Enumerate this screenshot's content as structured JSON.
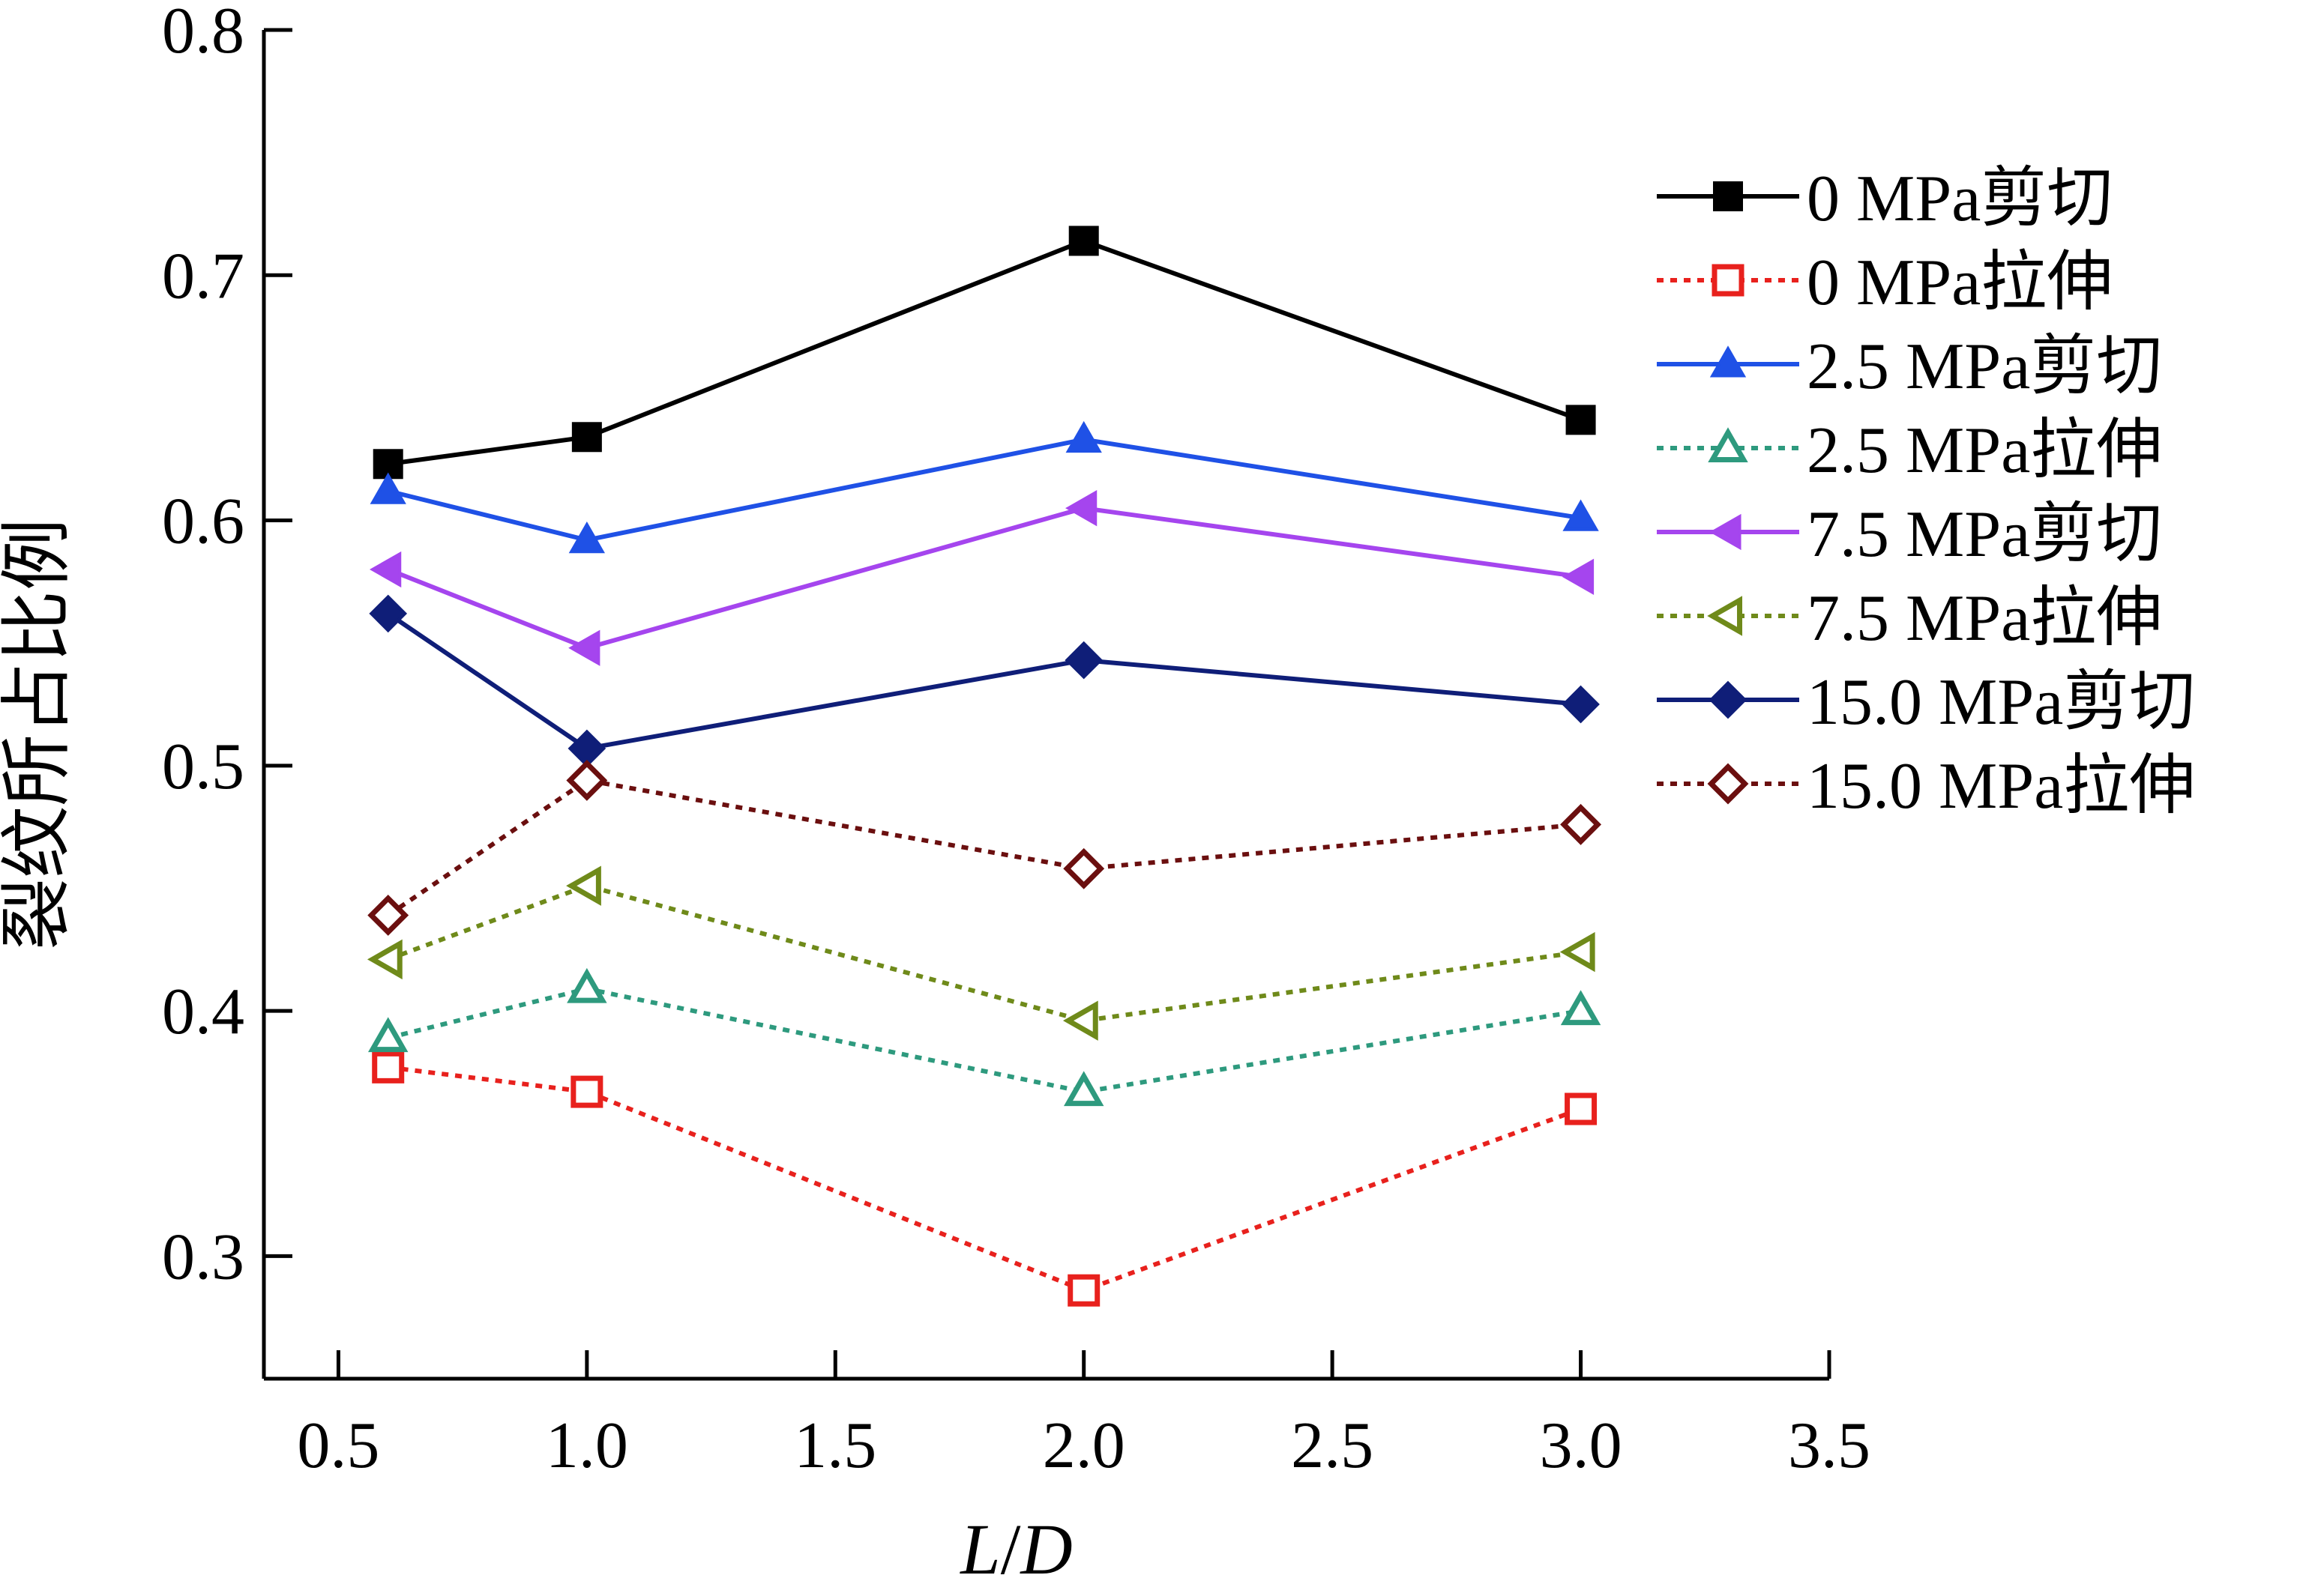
{
  "chart_data": {
    "type": "line",
    "xlabel": "L/D",
    "xlabel_parts": [
      "L",
      "/",
      "D"
    ],
    "ylabel": "裂纹所占比例",
    "xlim": [
      0.35,
      3.5
    ],
    "ylim": [
      0.25,
      0.8
    ],
    "xticks": [
      "0.5",
      "1.0",
      "1.5",
      "2.0",
      "2.5",
      "3.0",
      "3.5"
    ],
    "xtick_values": [
      0.5,
      1.0,
      1.5,
      2.0,
      2.5,
      3.0,
      3.5
    ],
    "yticks": [
      "0.3",
      "0.4",
      "0.5",
      "0.6",
      "0.7",
      "0.8"
    ],
    "ytick_values": [
      0.3,
      0.4,
      0.5,
      0.6,
      0.7,
      0.8
    ],
    "legend_position": "right",
    "x": [
      0.6,
      1.0,
      2.0,
      3.0
    ],
    "series": [
      {
        "name": "0 MPa剪切",
        "values": [
          0.623,
          0.634,
          0.714,
          0.641
        ],
        "color": "#000000",
        "marker": "square",
        "filled": true,
        "dash": false
      },
      {
        "name": "0 MPa拉伸",
        "values": [
          0.377,
          0.367,
          0.286,
          0.36
        ],
        "color": "#e8211d",
        "marker": "square",
        "filled": false,
        "dash": true
      },
      {
        "name": "2.5 MPa剪切",
        "values": [
          0.612,
          0.592,
          0.633,
          0.601
        ],
        "color": "#1f51e6",
        "marker": "triangle-up",
        "filled": true,
        "dash": false
      },
      {
        "name": "2.5 MPa拉伸",
        "values": [
          0.389,
          0.409,
          0.367,
          0.4
        ],
        "color": "#2e9a7e",
        "marker": "triangle-up",
        "filled": false,
        "dash": true
      },
      {
        "name": "7.5 MPa剪切",
        "values": [
          0.58,
          0.548,
          0.605,
          0.577
        ],
        "color": "#a545ee",
        "marker": "triangle-left",
        "filled": true,
        "dash": false
      },
      {
        "name": "7.5 MPa拉伸",
        "values": [
          0.421,
          0.451,
          0.396,
          0.424
        ],
        "color": "#6f8a1a",
        "marker": "triangle-left",
        "filled": false,
        "dash": true
      },
      {
        "name": "15.0 MPa剪切",
        "values": [
          0.562,
          0.507,
          0.543,
          0.525
        ],
        "color": "#0f1e78",
        "marker": "diamond",
        "filled": true,
        "dash": false
      },
      {
        "name": "15.0 MPa拉伸",
        "values": [
          0.439,
          0.494,
          0.458,
          0.476
        ],
        "color": "#6b0f0f",
        "marker": "diamond",
        "filled": false,
        "dash": true
      }
    ]
  }
}
